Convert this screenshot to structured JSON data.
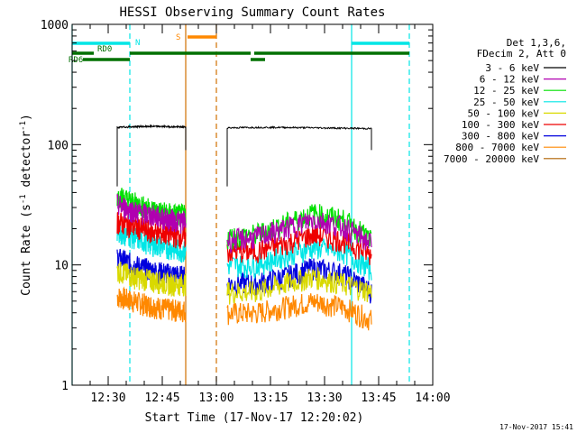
{
  "chart_data": {
    "type": "line",
    "title": "HESSI Observing Summary Count Rates",
    "xlabel": "Start Time (17-Nov-17 12:20:02)",
    "ylabel_main": "Count Rate (s",
    "ylabel_sup1": "-1",
    "ylabel_mid": " detector",
    "ylabel_sup2": "-1",
    "ylabel_end": ")",
    "y_scale": "log",
    "ylim": [
      1,
      1000
    ],
    "xlim_minutes": [
      0,
      100
    ],
    "x_ticks": [
      {
        "minute": 10,
        "label": "12:30"
      },
      {
        "minute": 25,
        "label": "12:45"
      },
      {
        "minute": 40,
        "label": "13:00"
      },
      {
        "minute": 55,
        "label": "13:15"
      },
      {
        "minute": 70,
        "label": "13:30"
      },
      {
        "minute": 85,
        "label": "13:45"
      },
      {
        "minute": 100,
        "label": "14:00"
      }
    ],
    "y_ticks": [
      {
        "value": 1,
        "label": "1"
      },
      {
        "value": 10,
        "label": "10"
      },
      {
        "value": 100,
        "label": "100"
      },
      {
        "value": 1000,
        "label": "1000"
      }
    ],
    "legend_header": [
      "Det 1,3,6,",
      "FDecim 2, Att 0"
    ],
    "legend_position": "right",
    "series": [
      {
        "name": "3 - 6 keV",
        "color": "#000000",
        "seg1": [
          139,
          141,
          142,
          141,
          140
        ],
        "seg2": [
          138,
          139,
          139,
          138,
          137,
          136
        ]
      },
      {
        "name": "6 - 12 keV",
        "color": "#b000b0",
        "seg1": [
          32,
          28,
          26,
          24,
          23
        ],
        "seg2": [
          16,
          17,
          20,
          24,
          21,
          15
        ]
      },
      {
        "name": "12 - 25 keV",
        "color": "#00e000",
        "seg1": [
          38,
          33,
          29,
          27,
          26
        ],
        "seg2": [
          17,
          18,
          22,
          27,
          24,
          16
        ]
      },
      {
        "name": "25 - 50 keV",
        "color": "#00e6e6",
        "seg1": [
          19,
          17,
          15,
          14,
          13
        ],
        "seg2": [
          10,
          10,
          12,
          14,
          13,
          9
        ]
      },
      {
        "name": "50 - 100 keV",
        "color": "#d9d900",
        "seg1": [
          9,
          8,
          7.5,
          7,
          7
        ],
        "seg2": [
          6,
          6,
          7,
          8,
          7,
          6
        ]
      },
      {
        "name": "100 - 300 keV",
        "color": "#ee0000",
        "seg1": [
          23,
          21,
          19,
          18,
          17
        ],
        "seg2": [
          13,
          13,
          15,
          18,
          16,
          12
        ]
      },
      {
        "name": "300 - 800 keV",
        "color": "#0000dd",
        "seg1": [
          11.5,
          10,
          9,
          8.5,
          8
        ],
        "seg2": [
          7,
          7,
          8,
          9.5,
          8.5,
          6
        ]
      },
      {
        "name": "800 - 7000 keV",
        "color": "#ff8800",
        "seg1": [
          5.5,
          5,
          4.6,
          4.3,
          4.2
        ],
        "seg2": [
          4,
          4,
          4.5,
          5,
          4.5,
          3.5
        ]
      },
      {
        "name": "7000 - 20000 keV",
        "color": "#b06000",
        "seg1": [],
        "seg2": []
      }
    ],
    "vertical_markers": [
      {
        "minute": 0,
        "color": "#00e6e6",
        "style": "solid"
      },
      {
        "minute": 16,
        "color": "#00e6e6",
        "style": "dashed"
      },
      {
        "minute": 31.5,
        "color": "#d07000",
        "style": "solid"
      },
      {
        "minute": 40,
        "color": "#d07000",
        "style": "dashed"
      },
      {
        "minute": 77.5,
        "color": "#00e6e6",
        "style": "solid"
      },
      {
        "minute": 93.5,
        "color": "#00e6e6",
        "style": "dashed"
      }
    ],
    "flag_bars": [
      {
        "label": "N",
        "color": "#00e6e6",
        "segments": [
          [
            0,
            16
          ],
          [
            77.5,
            93.5
          ]
        ],
        "row": 0
      },
      {
        "label": "S",
        "color": "#ff8800",
        "segments": [
          [
            32,
            40
          ]
        ],
        "row": -1
      },
      {
        "label": "RD0",
        "color": "#007000",
        "segments": [
          [
            0,
            6
          ],
          [
            16,
            49.5
          ],
          [
            50.5,
            93.5
          ]
        ],
        "row": 1
      },
      {
        "label": "RD6",
        "color": "#007000",
        "segments": [
          [
            3,
            16
          ],
          [
            49.5,
            53.5
          ]
        ],
        "row": 2
      }
    ],
    "timestamp": "17-Nov-2017 15:41"
  }
}
